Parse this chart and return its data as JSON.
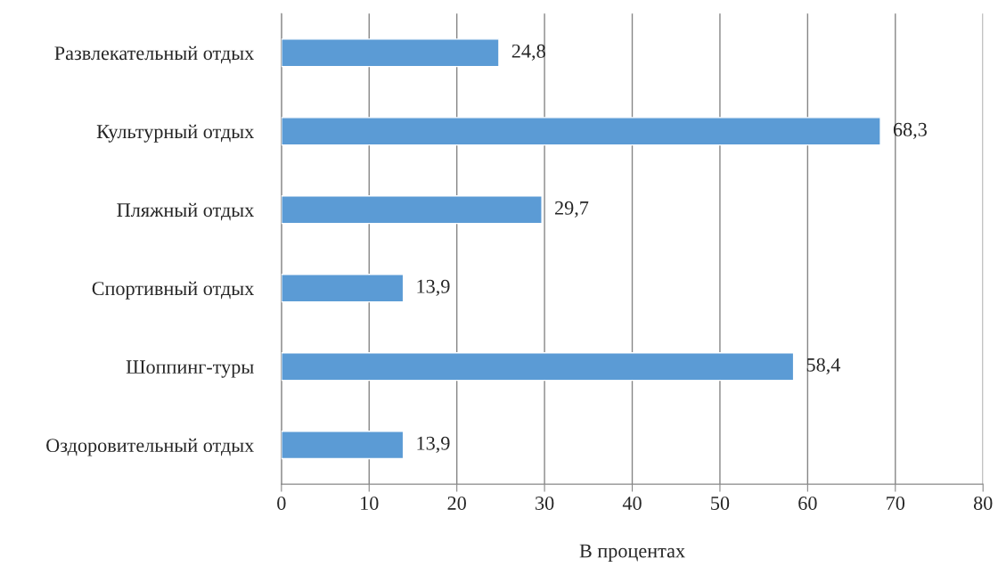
{
  "chart_data": {
    "type": "bar",
    "orientation": "horizontal",
    "xlabel": "В процентах",
    "categories": [
      "Развлекательный отдых",
      "Культурный отдых",
      "Пляжный отдых",
      "Спортивный отдых",
      "Шоппинг-туры",
      "Оздоровительный отдых"
    ],
    "values": [
      24.8,
      68.3,
      29.7,
      13.9,
      58.4,
      13.9
    ],
    "value_labels": [
      "24,8",
      "68,3",
      "29,7",
      "13,9",
      "58,4",
      "13,9"
    ],
    "color": "#5b9bd5",
    "xlim": [
      0,
      80
    ],
    "xticks": [
      0,
      10,
      20,
      30,
      40,
      50,
      60,
      70,
      80
    ],
    "grid": "x"
  }
}
